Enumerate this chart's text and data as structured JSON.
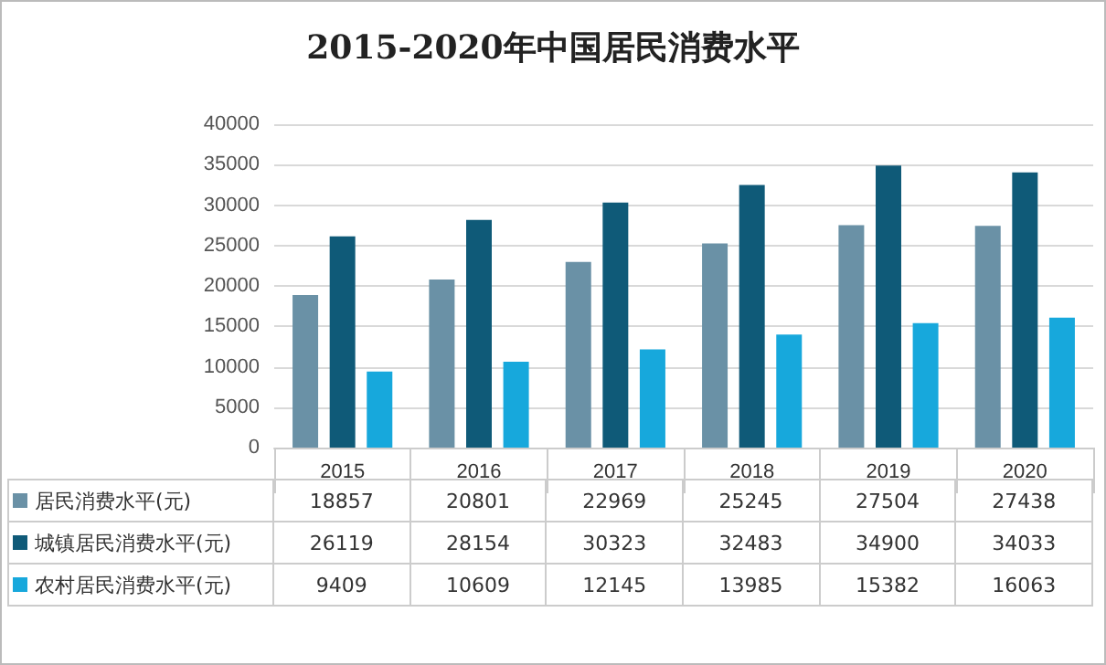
{
  "chart_data": {
    "type": "bar",
    "title": "2015-2020年中国居民消费水平",
    "categories": [
      "2015",
      "2016",
      "2017",
      "2018",
      "2019",
      "2020"
    ],
    "series": [
      {
        "name": "居民消费水平(元)",
        "color": "#6a91a6",
        "values": [
          18857,
          20801,
          22969,
          25245,
          27504,
          27438
        ]
      },
      {
        "name": "城镇居民消费水平(元)",
        "color": "#0f5a78",
        "values": [
          26119,
          28154,
          30323,
          32483,
          34900,
          34033
        ]
      },
      {
        "name": "农村居民消费水平(元)",
        "color": "#17a8dc",
        "values": [
          9409,
          10609,
          12145,
          13985,
          15382,
          16063
        ]
      }
    ],
    "ylim": [
      0,
      40000
    ],
    "yticks": [
      0,
      5000,
      10000,
      15000,
      20000,
      25000,
      30000,
      35000,
      40000
    ],
    "grid": "y",
    "data_labels": true,
    "legend": "bottom"
  }
}
